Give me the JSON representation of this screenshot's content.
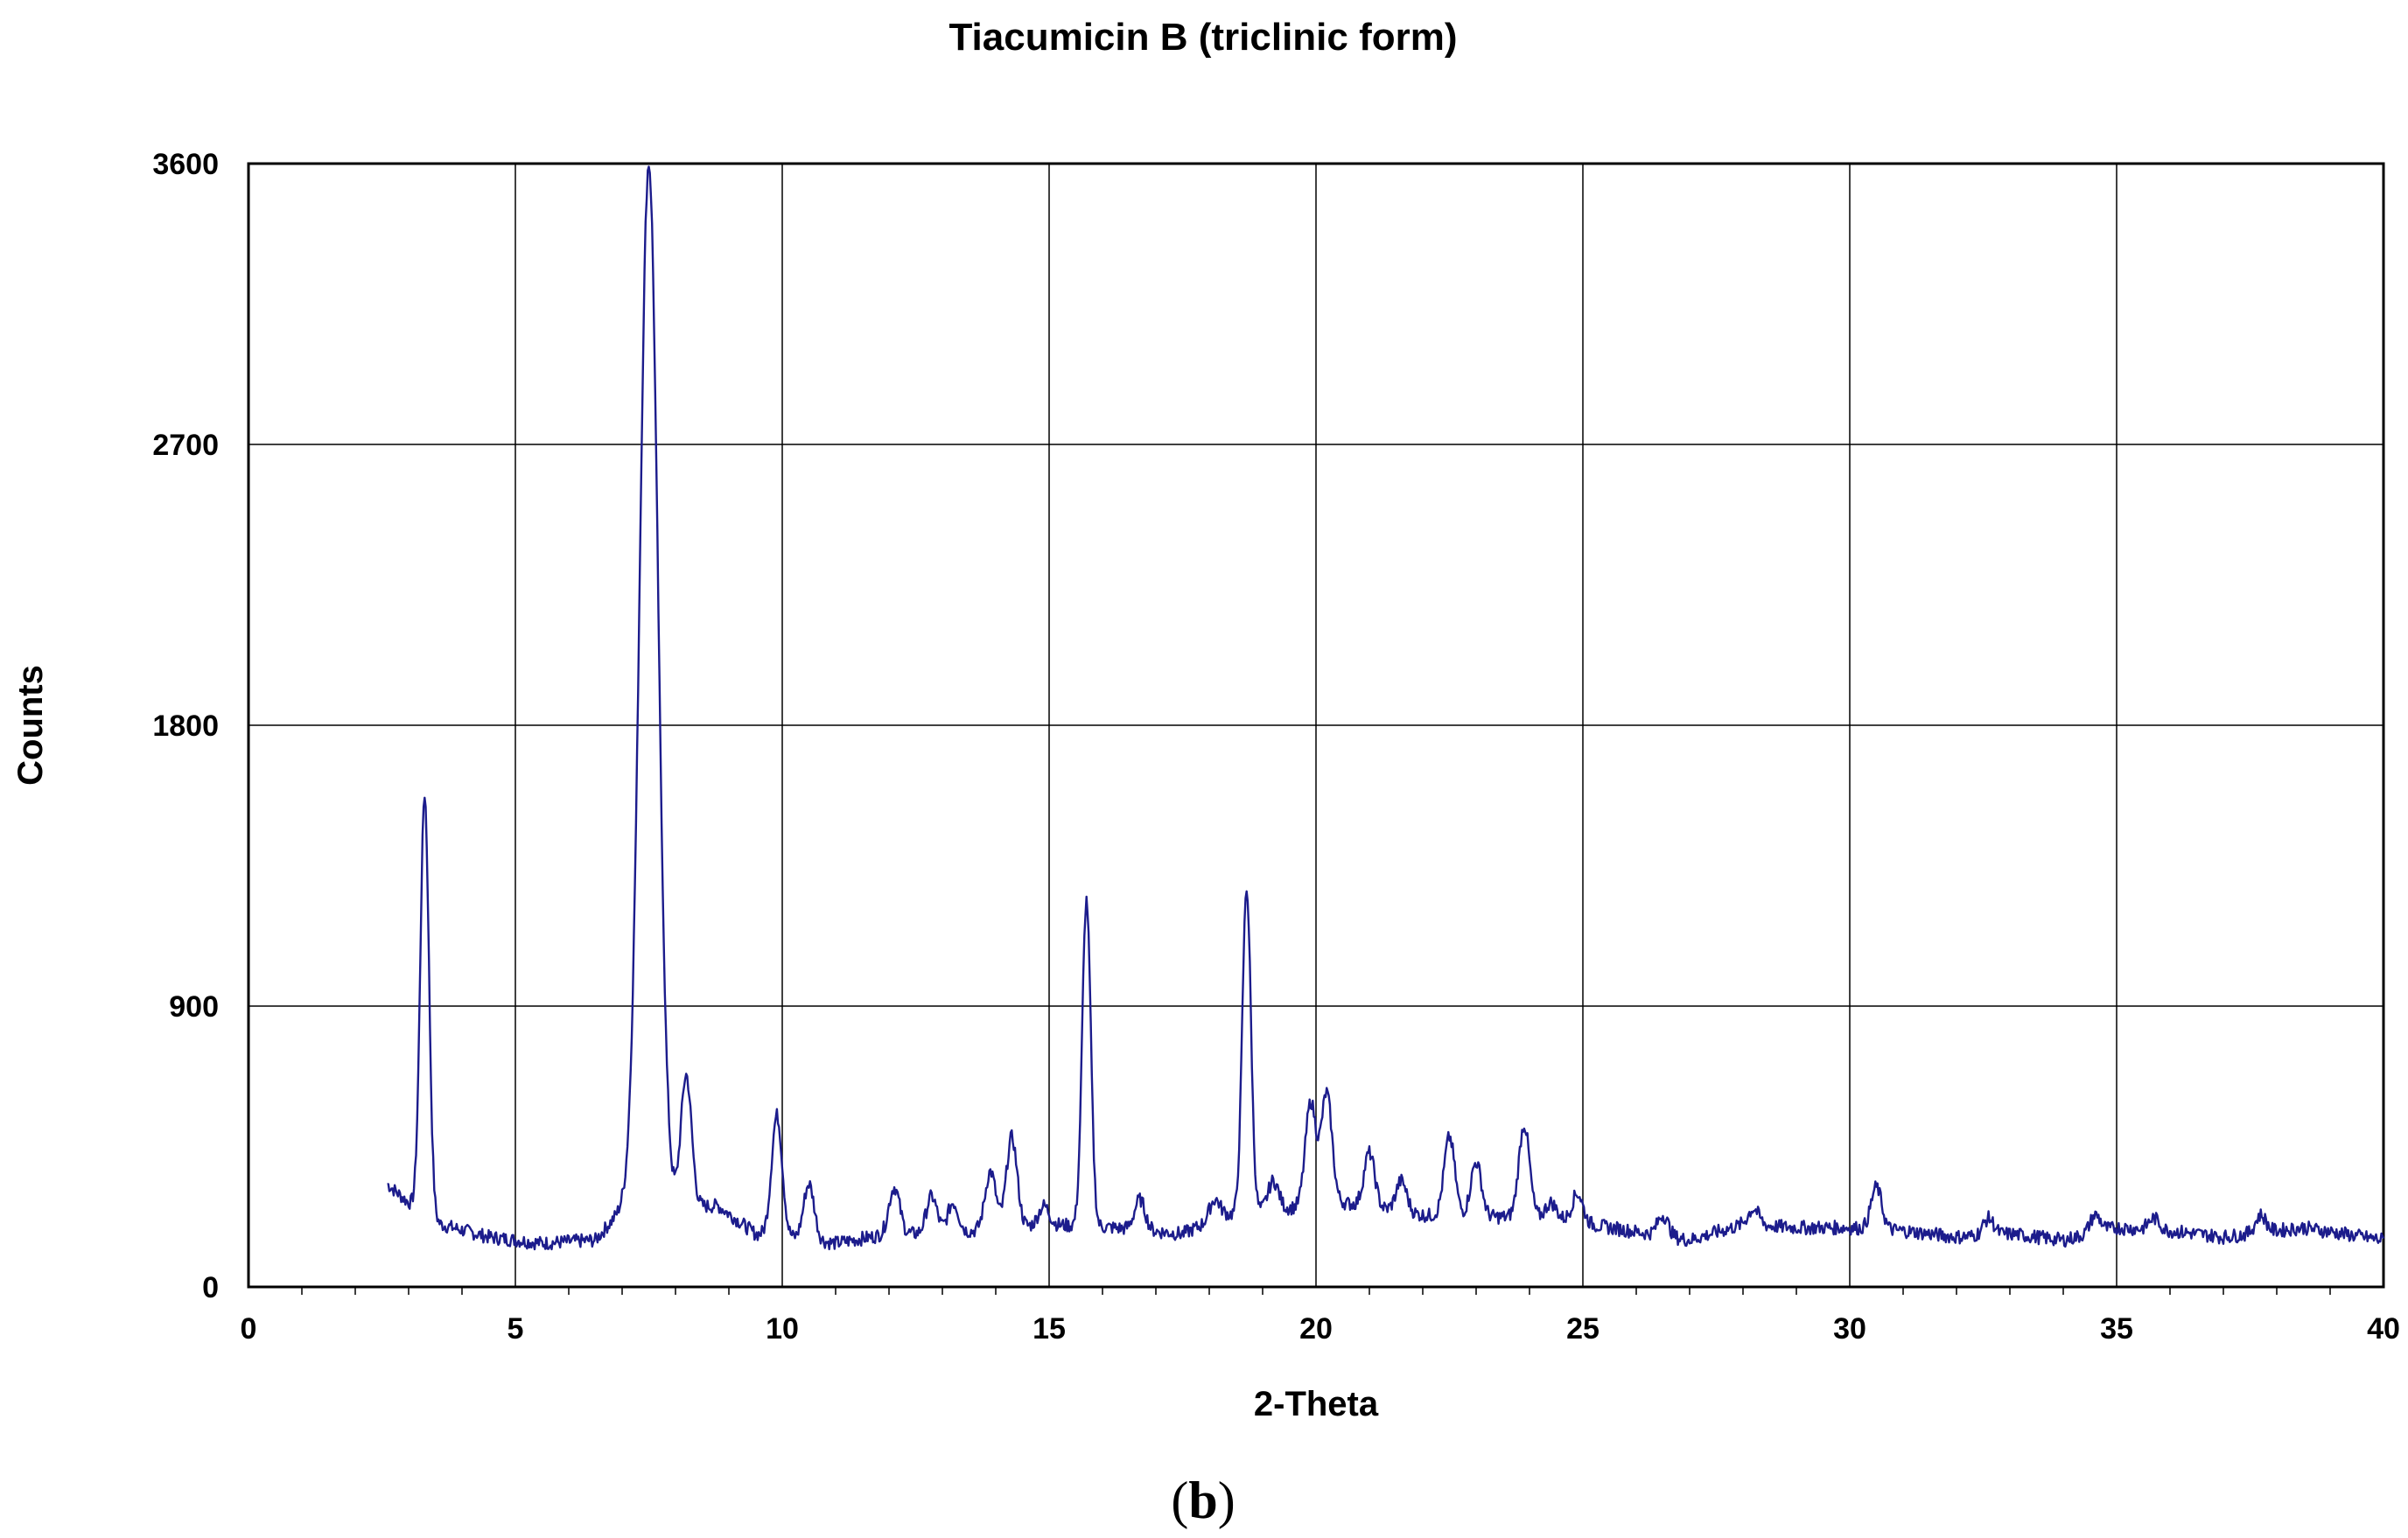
{
  "chart_data": {
    "type": "line",
    "title": "Tiacumicin B (triclinic form)",
    "xlabel": "2-Theta",
    "ylabel": "Counts",
    "caption_letter": "b",
    "xlim": [
      0,
      40
    ],
    "ylim": [
      0,
      3600
    ],
    "x_ticks": [
      "0",
      "5",
      "10",
      "15",
      "20",
      "25",
      "30",
      "35",
      "40"
    ],
    "y_ticks": [
      "0",
      "900",
      "1800",
      "2700",
      "3600"
    ],
    "grid": true,
    "line_color": "#1c1c8c",
    "series": [
      {
        "peaks": [
          [
            3.3,
            1580
          ],
          [
            7.5,
            3600
          ],
          [
            8.2,
            680
          ],
          [
            9.9,
            550
          ],
          [
            10.5,
            330
          ],
          [
            12.1,
            320
          ],
          [
            12.8,
            290
          ],
          [
            13.2,
            270
          ],
          [
            13.9,
            370
          ],
          [
            14.3,
            480
          ],
          [
            14.9,
            260
          ],
          [
            15.7,
            1240
          ],
          [
            16.7,
            280
          ],
          [
            18.1,
            280
          ],
          [
            18.7,
            1280
          ],
          [
            19.2,
            340
          ],
          [
            19.9,
            590
          ],
          [
            20.2,
            620
          ],
          [
            21.0,
            430
          ],
          [
            21.6,
            340
          ],
          [
            22.5,
            480
          ],
          [
            23.0,
            400
          ],
          [
            23.9,
            520
          ],
          [
            24.4,
            270
          ],
          [
            24.9,
            300
          ],
          [
            26.5,
            230
          ],
          [
            28.2,
            250
          ],
          [
            30.5,
            320
          ],
          [
            32.6,
            220
          ],
          [
            34.6,
            230
          ],
          [
            35.7,
            220
          ],
          [
            37.7,
            230
          ]
        ],
        "baseline": [
          [
            2.6,
            330
          ],
          [
            3.0,
            270
          ],
          [
            3.6,
            200
          ],
          [
            4.5,
            160
          ],
          [
            5.5,
            140
          ],
          [
            6.5,
            150
          ],
          [
            7.0,
            250
          ],
          [
            8.8,
            260
          ],
          [
            9.5,
            170
          ],
          [
            11.0,
            140
          ],
          [
            12.0,
            170
          ],
          [
            13.0,
            170
          ],
          [
            15.0,
            200
          ],
          [
            16.2,
            190
          ],
          [
            17.5,
            170
          ],
          [
            18.3,
            230
          ],
          [
            20.5,
            270
          ],
          [
            22.0,
            230
          ],
          [
            24.5,
            220
          ],
          [
            25.5,
            190
          ],
          [
            27.0,
            150
          ],
          [
            28.0,
            200
          ],
          [
            29.0,
            190
          ],
          [
            30.0,
            190
          ],
          [
            31.0,
            180
          ],
          [
            32.0,
            160
          ],
          [
            33.0,
            170
          ],
          [
            34.0,
            150
          ],
          [
            35.0,
            190
          ],
          [
            36.0,
            180
          ],
          [
            37.0,
            160
          ],
          [
            38.5,
            190
          ],
          [
            40.0,
            150
          ]
        ],
        "x_start": 2.6,
        "x_end": 40
      }
    ]
  }
}
